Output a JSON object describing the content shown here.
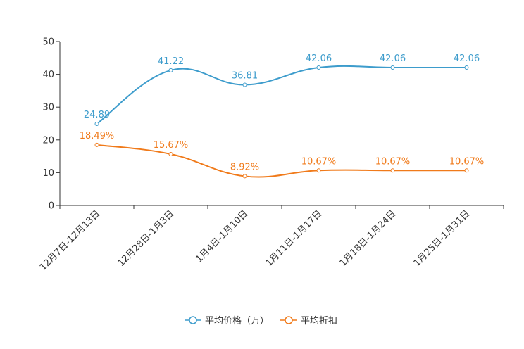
{
  "chart_data": {
    "type": "line",
    "title": "",
    "xlabel": "",
    "ylabel": "",
    "ylim": [
      0,
      50
    ],
    "yticks": [
      0,
      10,
      20,
      30,
      40,
      50
    ],
    "categories": [
      "12月7日-12月13日",
      "12月28日-1月3日",
      "1月4日-1月10日",
      "1月11日-1月17日",
      "1月18日-1月24日",
      "1月25日-1月31日"
    ],
    "series": [
      {
        "name": "平均价格（万）",
        "color": "#3d9ccc",
        "values": [
          24.89,
          41.22,
          36.81,
          42.06,
          42.06,
          42.06
        ],
        "labels": [
          "24.89",
          "41.22",
          "36.81",
          "42.06",
          "42.06",
          "42.06"
        ]
      },
      {
        "name": "平均折扣",
        "color": "#f07a1a",
        "values": [
          18.49,
          15.67,
          8.92,
          10.67,
          10.67,
          10.67
        ],
        "labels": [
          "18.49%",
          "15.67%",
          "8.92%",
          "10.67%",
          "10.67%",
          "10.67%"
        ]
      }
    ],
    "legend": "bottom-center",
    "grid": false
  }
}
